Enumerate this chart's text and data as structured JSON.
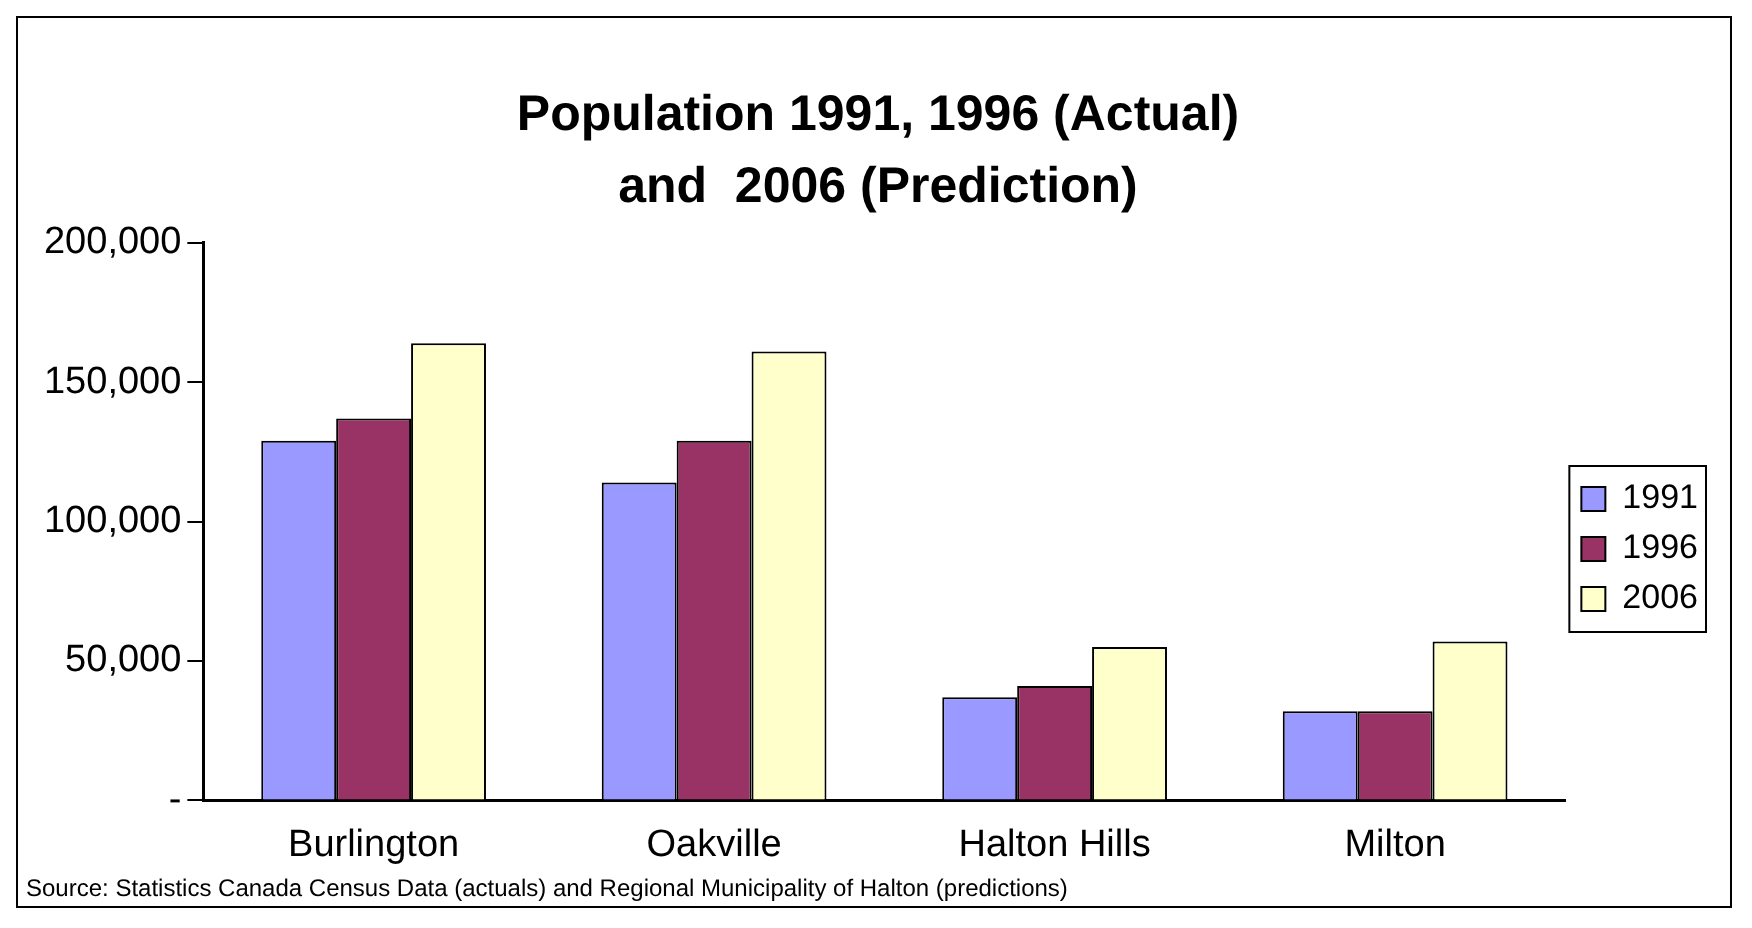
{
  "chart_data": {
    "type": "bar",
    "title": "Population 1991, 1996 (Actual) and  2006 (Prediction)",
    "categories": [
      "Burlington",
      "Oakville",
      "Halton Hills",
      "Milton"
    ],
    "series": [
      {
        "name": "1991",
        "color": "#9999ff",
        "values": [
          129000,
          114000,
          37000,
          32000
        ]
      },
      {
        "name": "1996",
        "color": "#993366",
        "values": [
          137000,
          129000,
          41000,
          32000
        ]
      },
      {
        "name": "2006",
        "color": "#ffffcc",
        "values": [
          164000,
          161000,
          55000,
          57000
        ]
      }
    ],
    "ylim": [
      0,
      200000
    ],
    "yticks": [
      {
        "value": 0,
        "label": "-"
      },
      {
        "value": 50000,
        "label": "50,000"
      },
      {
        "value": 100000,
        "label": "100,000"
      },
      {
        "value": 150000,
        "label": "150,000"
      },
      {
        "value": 200000,
        "label": "200,000"
      }
    ],
    "grid": false,
    "legend": "right",
    "annotations": [
      "Source: Statistics Canada Census Data (actuals) and Regional Municipality of Halton (predictions)"
    ]
  }
}
